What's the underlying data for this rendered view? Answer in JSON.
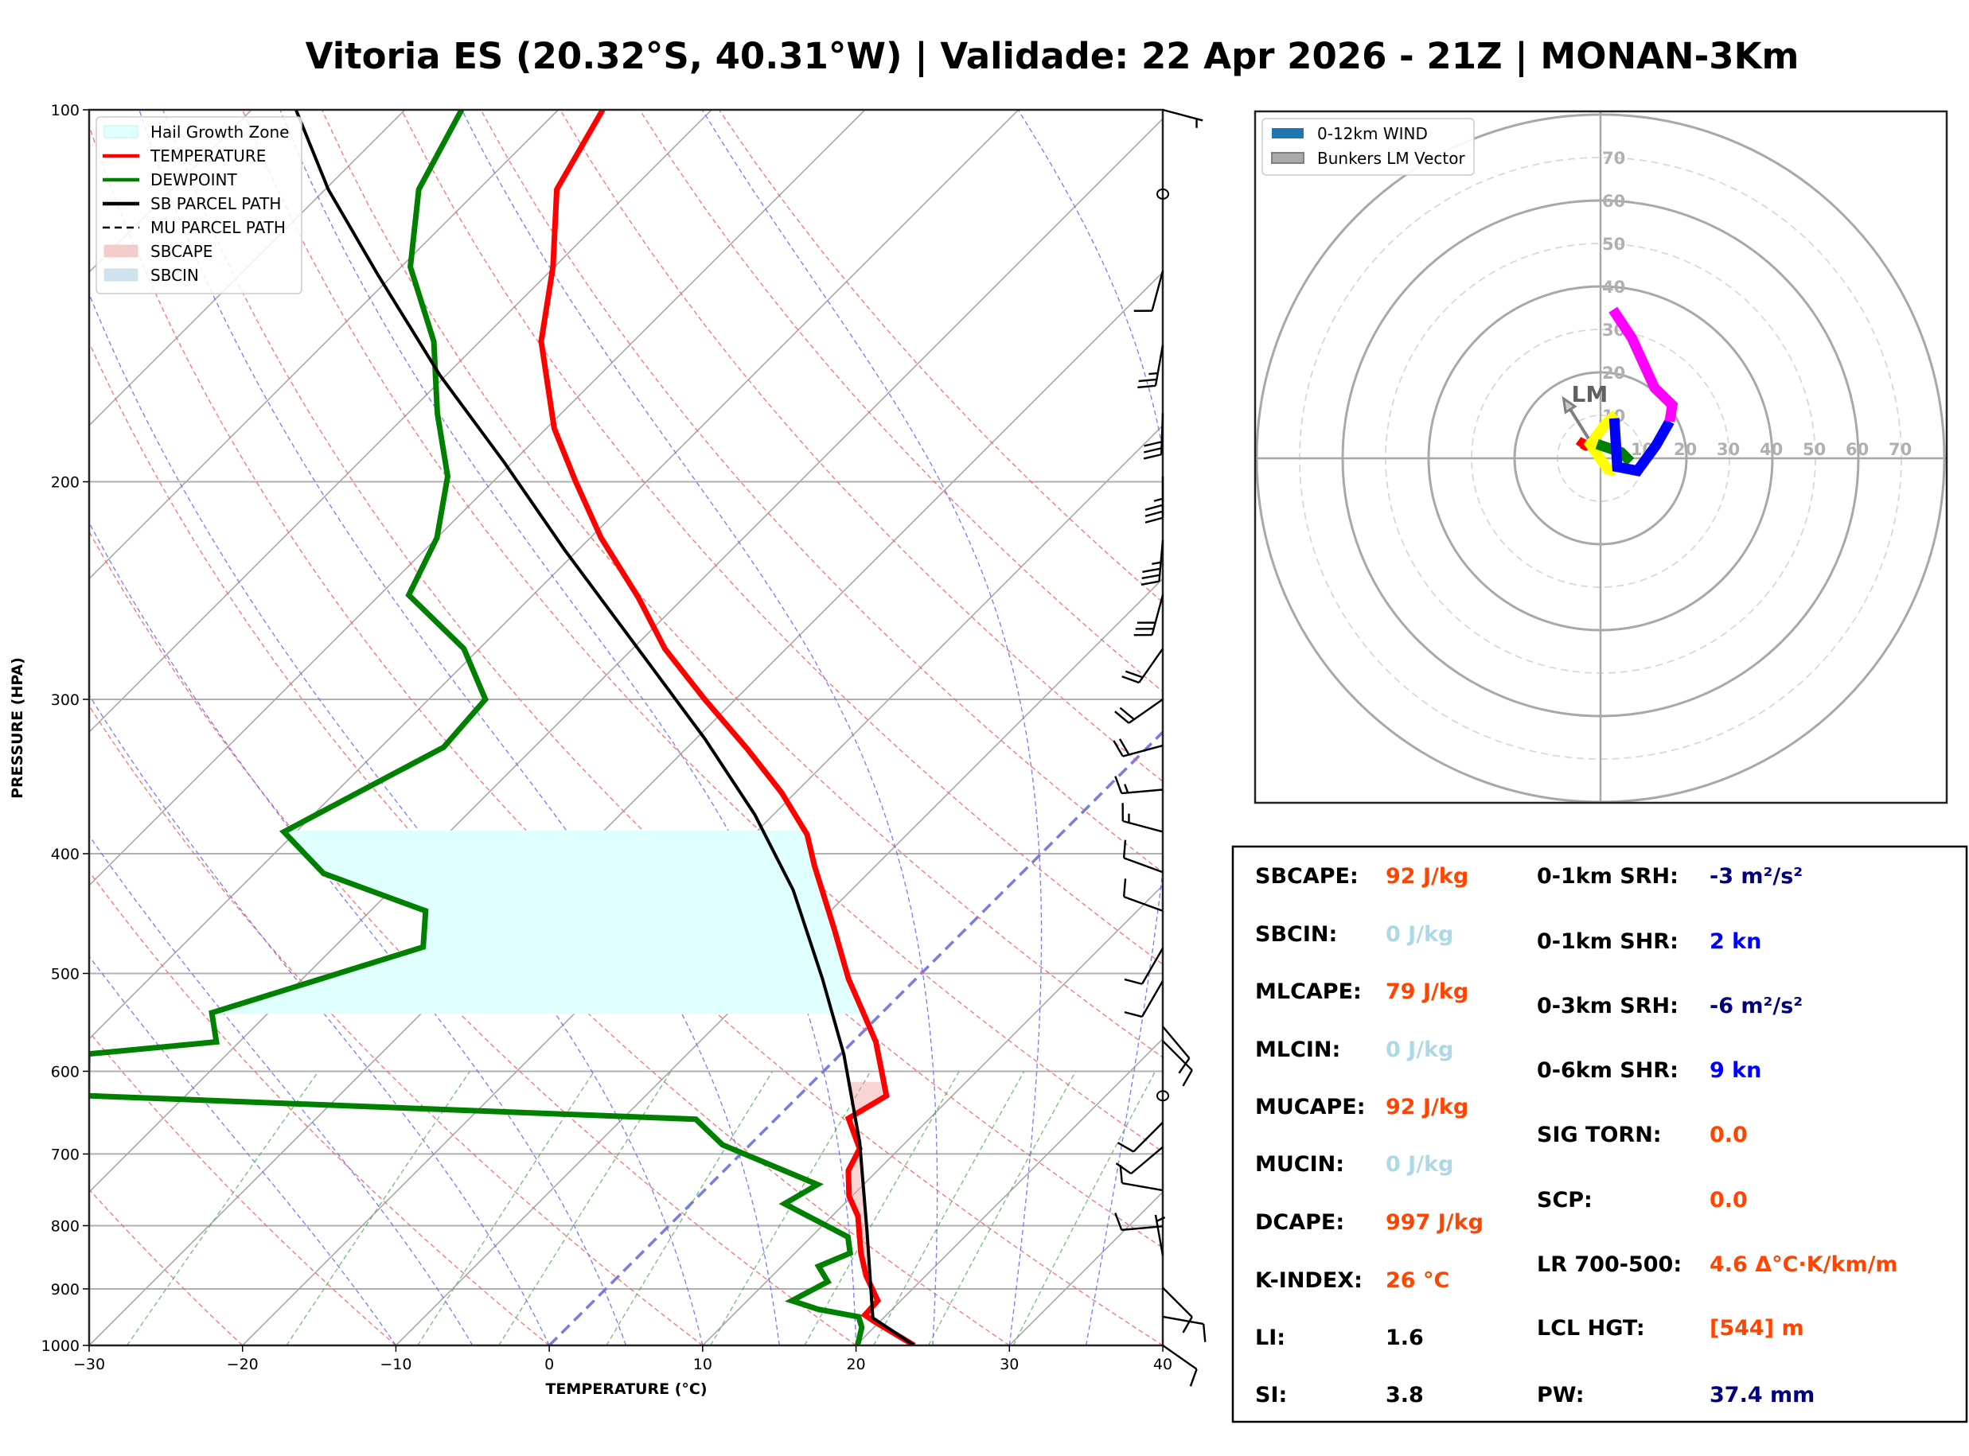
{
  "title": "Vitoria ES (20.32°S, 40.31°W) | Validade: 22 Apr 2026 - 21Z | MONAN-3Km",
  "chart_data": [
    {
      "type": "line",
      "name": "skewt",
      "xlabel": "TEMPERATURE (°C)",
      "ylabel": "PRESSURE (HPA)",
      "xlim": [
        -30,
        40
      ],
      "ylim": [
        1000,
        100
      ],
      "yscale": "log",
      "skew_degrees": 45,
      "xticks": [
        -30,
        -20,
        -10,
        0,
        10,
        20,
        30,
        40
      ],
      "xtick_labels": [
        "−30",
        "−20",
        "−10",
        "0",
        "10",
        "20",
        "30",
        "40"
      ],
      "yticks": [
        100,
        200,
        300,
        400,
        500,
        600,
        700,
        800,
        900,
        1000
      ],
      "ytick_labels": [
        "100",
        "200",
        "300",
        "400",
        "500",
        "600",
        "700",
        "800",
        "900",
        "1000"
      ],
      "grid": true,
      "legend": {
        "placement": "top-left",
        "entries": [
          {
            "label": "Hail Growth Zone",
            "kind": "patch",
            "color": "#e0ffff",
            "edge": "#b8f4f4"
          },
          {
            "label": "TEMPERATURE",
            "kind": "line",
            "color": "#ff0000",
            "dash": "solid"
          },
          {
            "label": "DEWPOINT",
            "kind": "line",
            "color": "#008000",
            "dash": "solid"
          },
          {
            "label": "SB PARCEL PATH",
            "kind": "line",
            "color": "#000000",
            "dash": "solid"
          },
          {
            "label": "MU PARCEL PATH",
            "kind": "line",
            "color": "#000000",
            "dash": "dashed"
          },
          {
            "label": "SBCAPE",
            "kind": "patch",
            "color": "#f4cccc",
            "edge": "#f4cccc"
          },
          {
            "label": "SBCIN",
            "kind": "patch",
            "color": "#cfe2ee",
            "edge": "#cfe2ee"
          }
        ]
      },
      "reference_lines": {
        "isotherms_c": [
          -100,
          -90,
          -80,
          -70,
          -60,
          -50,
          -40,
          -30,
          -20,
          -10,
          0,
          10,
          20,
          30,
          40
        ],
        "highlight_isotherm_c": 0,
        "dry_adiabats_c": [
          -30,
          -20,
          -10,
          0,
          10,
          20,
          30,
          40,
          50,
          60,
          70,
          80,
          90,
          100,
          110,
          120
        ],
        "moist_adiabats_c": [
          -10,
          -5,
          0,
          5,
          10,
          15,
          20,
          25,
          30,
          35
        ],
        "mixing_ratio_gkg": [
          0.4,
          1,
          2,
          3,
          5,
          8,
          12,
          16,
          20,
          28
        ],
        "mixing_ratio_top_hpa": 600
      },
      "series": [
        {
          "name": "TEMPERATURE",
          "color": "#ff0000",
          "points": [
            [
              1000,
              23.8
            ],
            [
              957,
              19.7
            ],
            [
              945,
              18.6
            ],
            [
              920,
              18.5
            ],
            [
              878,
              16.1
            ],
            [
              842,
              14.3
            ],
            [
              786,
              11.7
            ],
            [
              757,
              9.8
            ],
            [
              722,
              8.1
            ],
            [
              693,
              7.4
            ],
            [
              655,
              4.7
            ],
            [
              628,
              5.7
            ],
            [
              568,
              1.5
            ],
            [
              535,
              -1.5
            ],
            [
              505,
              -4.4
            ],
            [
              460,
              -8.6
            ],
            [
              409,
              -14.0
            ],
            [
              386,
              -16.5
            ],
            [
              357,
              -20.9
            ],
            [
              329,
              -26.0
            ],
            [
              300,
              -32.0
            ],
            [
              273,
              -37.9
            ],
            [
              248,
              -43.0
            ],
            [
              222,
              -49.3
            ],
            [
              200,
              -54.6
            ],
            [
              181,
              -59.5
            ],
            [
              154,
              -66.0
            ],
            [
              134,
              -70.1
            ],
            [
              116,
              -74.9
            ],
            [
              100,
              -77.1
            ]
          ]
        },
        {
          "name": "DEWPOINT",
          "color": "#008000",
          "points": [
            [
              1000,
              20.1
            ],
            [
              967,
              19.2
            ],
            [
              948,
              18.3
            ],
            [
              935,
              15.2
            ],
            [
              920,
              12.9
            ],
            [
              888,
              14.0
            ],
            [
              863,
              12.4
            ],
            [
              842,
              13.6
            ],
            [
              817,
              12.4
            ],
            [
              768,
              6.1
            ],
            [
              741,
              7.0
            ],
            [
              688,
              -1.8
            ],
            [
              656,
              -5.2
            ],
            [
              628,
              -46.4
            ],
            [
              581,
              -49.1
            ],
            [
              568,
              -41.5
            ],
            [
              538,
              -43.7
            ],
            [
              476,
              -34.2
            ],
            [
              445,
              -36.4
            ],
            [
              415,
              -45.5
            ],
            [
              384,
              -50.8
            ],
            [
              328,
              -45.9
            ],
            [
              300,
              -46.3
            ],
            [
              273,
              -51.0
            ],
            [
              247,
              -58.1
            ],
            [
              222,
              -60.0
            ],
            [
              198,
              -63.3
            ],
            [
              176,
              -68.1
            ],
            [
              154,
              -73.0
            ],
            [
              134,
              -79.4
            ],
            [
              116,
              -83.9
            ],
            [
              100,
              -86.3
            ]
          ]
        },
        {
          "name": "SB PARCEL PATH",
          "color": "#000000",
          "points": [
            [
              1000,
              23.8
            ],
            [
              950,
              19.3
            ],
            [
              809,
              13.3
            ],
            [
              685,
              7.0
            ],
            [
              581,
              0.2
            ],
            [
              505,
              -6.1
            ],
            [
              428,
              -13.8
            ],
            [
              372,
              -21.2
            ],
            [
              323,
              -29.4
            ],
            [
              275,
              -39.2
            ],
            [
              227,
              -50.9
            ],
            [
              193,
              -60.5
            ],
            [
              164,
              -70.4
            ],
            [
              136,
              -81.0
            ],
            [
              116,
              -89.8
            ],
            [
              100,
              -97.1
            ]
          ]
        }
      ],
      "shaded_regions": {
        "hail_growth_zone_hpa": [
          383,
          539
        ],
        "sbcape_hpa": [
          610,
          930
        ],
        "sbcin_hpa": [
          930,
          960
        ]
      },
      "wind_barbs": [
        {
          "p": 100,
          "dir": 105,
          "kt": 5
        },
        {
          "p": 117,
          "dir": 0,
          "kt": 0
        },
        {
          "p": 135,
          "dir": 195,
          "kt": 10
        },
        {
          "p": 155,
          "dir": 190,
          "kt": 25
        },
        {
          "p": 176,
          "dir": 182,
          "kt": 30
        },
        {
          "p": 198,
          "dir": 180,
          "kt": 35
        },
        {
          "p": 223,
          "dir": 185,
          "kt": 35
        },
        {
          "p": 247,
          "dir": 195,
          "kt": 30
        },
        {
          "p": 273,
          "dir": 215,
          "kt": 20
        },
        {
          "p": 300,
          "dir": 235,
          "kt": 20
        },
        {
          "p": 327,
          "dir": 255,
          "kt": 20
        },
        {
          "p": 355,
          "dir": 265,
          "kt": 15
        },
        {
          "p": 384,
          "dir": 285,
          "kt": 15
        },
        {
          "p": 414,
          "dir": 290,
          "kt": 10
        },
        {
          "p": 445,
          "dir": 290,
          "kt": 10
        },
        {
          "p": 477,
          "dir": 210,
          "kt": 10
        },
        {
          "p": 507,
          "dir": 210,
          "kt": 10
        },
        {
          "p": 552,
          "dir": 140,
          "kt": 10
        },
        {
          "p": 567,
          "dir": 135,
          "kt": 10
        },
        {
          "p": 628,
          "dir": 0,
          "kt": 0
        },
        {
          "p": 660,
          "dir": 225,
          "kt": 10
        },
        {
          "p": 691,
          "dir": 230,
          "kt": 10
        },
        {
          "p": 749,
          "dir": 280,
          "kt": 10
        },
        {
          "p": 801,
          "dir": 265,
          "kt": 10
        },
        {
          "p": 846,
          "dir": 350,
          "kt": 5
        },
        {
          "p": 898,
          "dir": 135,
          "kt": 10
        },
        {
          "p": 948,
          "dir": 100,
          "kt": 10
        },
        {
          "p": 1000,
          "dir": 125,
          "kt": 10
        }
      ]
    },
    {
      "type": "line",
      "name": "hodograph",
      "units": "kt",
      "rings_kt": [
        10,
        20,
        30,
        40,
        50,
        60,
        70,
        80
      ],
      "ring_labels": [
        "10",
        "20",
        "30",
        "40",
        "50",
        "60",
        "70"
      ],
      "range_kt": [
        -50,
        80
      ],
      "legend": {
        "placement": "top-left",
        "entries": [
          {
            "label": "0-12km WIND",
            "color": "#1f77b4"
          },
          {
            "label": "Bunkers LM Vector",
            "color": "#aaaaaa",
            "edge": "#808080"
          }
        ]
      },
      "segments": [
        {
          "name": "red",
          "color": "#ff0000",
          "points": [
            [
              -4.8,
              2.6
            ],
            [
              -4.2,
              3.4
            ],
            [
              -3.4,
              3.0
            ],
            [
              -2.6,
              3.3
            ]
          ]
        },
        {
          "name": "yellow",
          "color": "#ffff00",
          "points": [
            [
              3.6,
              -2.9
            ],
            [
              1.7,
              -2.6
            ],
            [
              -2.4,
              3.3
            ],
            [
              1.4,
              8.3
            ],
            [
              3.6,
              10.2
            ]
          ]
        },
        {
          "name": "green",
          "color": "#008000",
          "points": [
            [
              -0.8,
              3.3
            ],
            [
              4.8,
              1.4
            ],
            [
              7.0,
              -0.8
            ]
          ]
        },
        {
          "name": "blue",
          "color": "#0000ff",
          "points": [
            [
              3.2,
              9.3
            ],
            [
              3.9,
              -2.0
            ],
            [
              8.6,
              -2.9
            ],
            [
              12.9,
              3.0
            ],
            [
              16.1,
              8.6
            ]
          ]
        },
        {
          "name": "magenta",
          "color": "#ff00ff",
          "points": [
            [
              16.1,
              8.6
            ],
            [
              16.7,
              12.4
            ],
            [
              12.6,
              16.4
            ],
            [
              7.3,
              28.0
            ],
            [
              2.9,
              34.6
            ]
          ]
        }
      ],
      "bunkers_lm": {
        "label": "LM",
        "from": [
          -2.8,
          4.6
        ],
        "to": [
          -8.6,
          13.9
        ],
        "color": "#808080"
      }
    }
  ],
  "stats": {
    "left": [
      {
        "key": "SBCAPE:",
        "value": "92 J/kg",
        "color": "#ff4500"
      },
      {
        "key": "SBCIN:",
        "value": "0 J/kg",
        "color": "#add8e6"
      },
      {
        "key": "MLCAPE:",
        "value": "79 J/kg",
        "color": "#ff4500"
      },
      {
        "key": "MLCIN:",
        "value": "0 J/kg",
        "color": "#add8e6"
      },
      {
        "key": "MUCAPE:",
        "value": "92 J/kg",
        "color": "#ff4500"
      },
      {
        "key": "MUCIN:",
        "value": "0 J/kg",
        "color": "#add8e6"
      },
      {
        "key": "DCAPE:",
        "value": "997 J/kg",
        "color": "#ff4500"
      },
      {
        "key": "K-INDEX:",
        "value": "26 °C",
        "color": "#ff4500"
      },
      {
        "key": "LI:",
        "value": "1.6",
        "color": "#000000"
      },
      {
        "key": "SI:",
        "value": "3.8",
        "color": "#000000"
      }
    ],
    "right": [
      {
        "key": "0-1km SRH:",
        "value": "-3 m²/s²",
        "color": "#000080"
      },
      {
        "key": "0-1km SHR:",
        "value": "2 kn",
        "color": "#0000ff"
      },
      {
        "key": "0-3km SRH:",
        "value": "-6 m²/s²",
        "color": "#000080"
      },
      {
        "key": "0-6km SHR:",
        "value": "9 kn",
        "color": "#0000ff"
      },
      {
        "key": "SIG TORN:",
        "value": "0.0",
        "color": "#ff4500"
      },
      {
        "key": "SCP:",
        "value": "0.0",
        "color": "#ff4500"
      },
      {
        "key": "LR 700-500:",
        "value": "4.6 Δ°C·K/km/m",
        "color": "#ff4500"
      },
      {
        "key": "LCL HGT:",
        "value": "[544] m",
        "color": "#ff4500"
      },
      {
        "key": "PW:",
        "value": "37.4 mm",
        "color": "#000080"
      }
    ]
  }
}
